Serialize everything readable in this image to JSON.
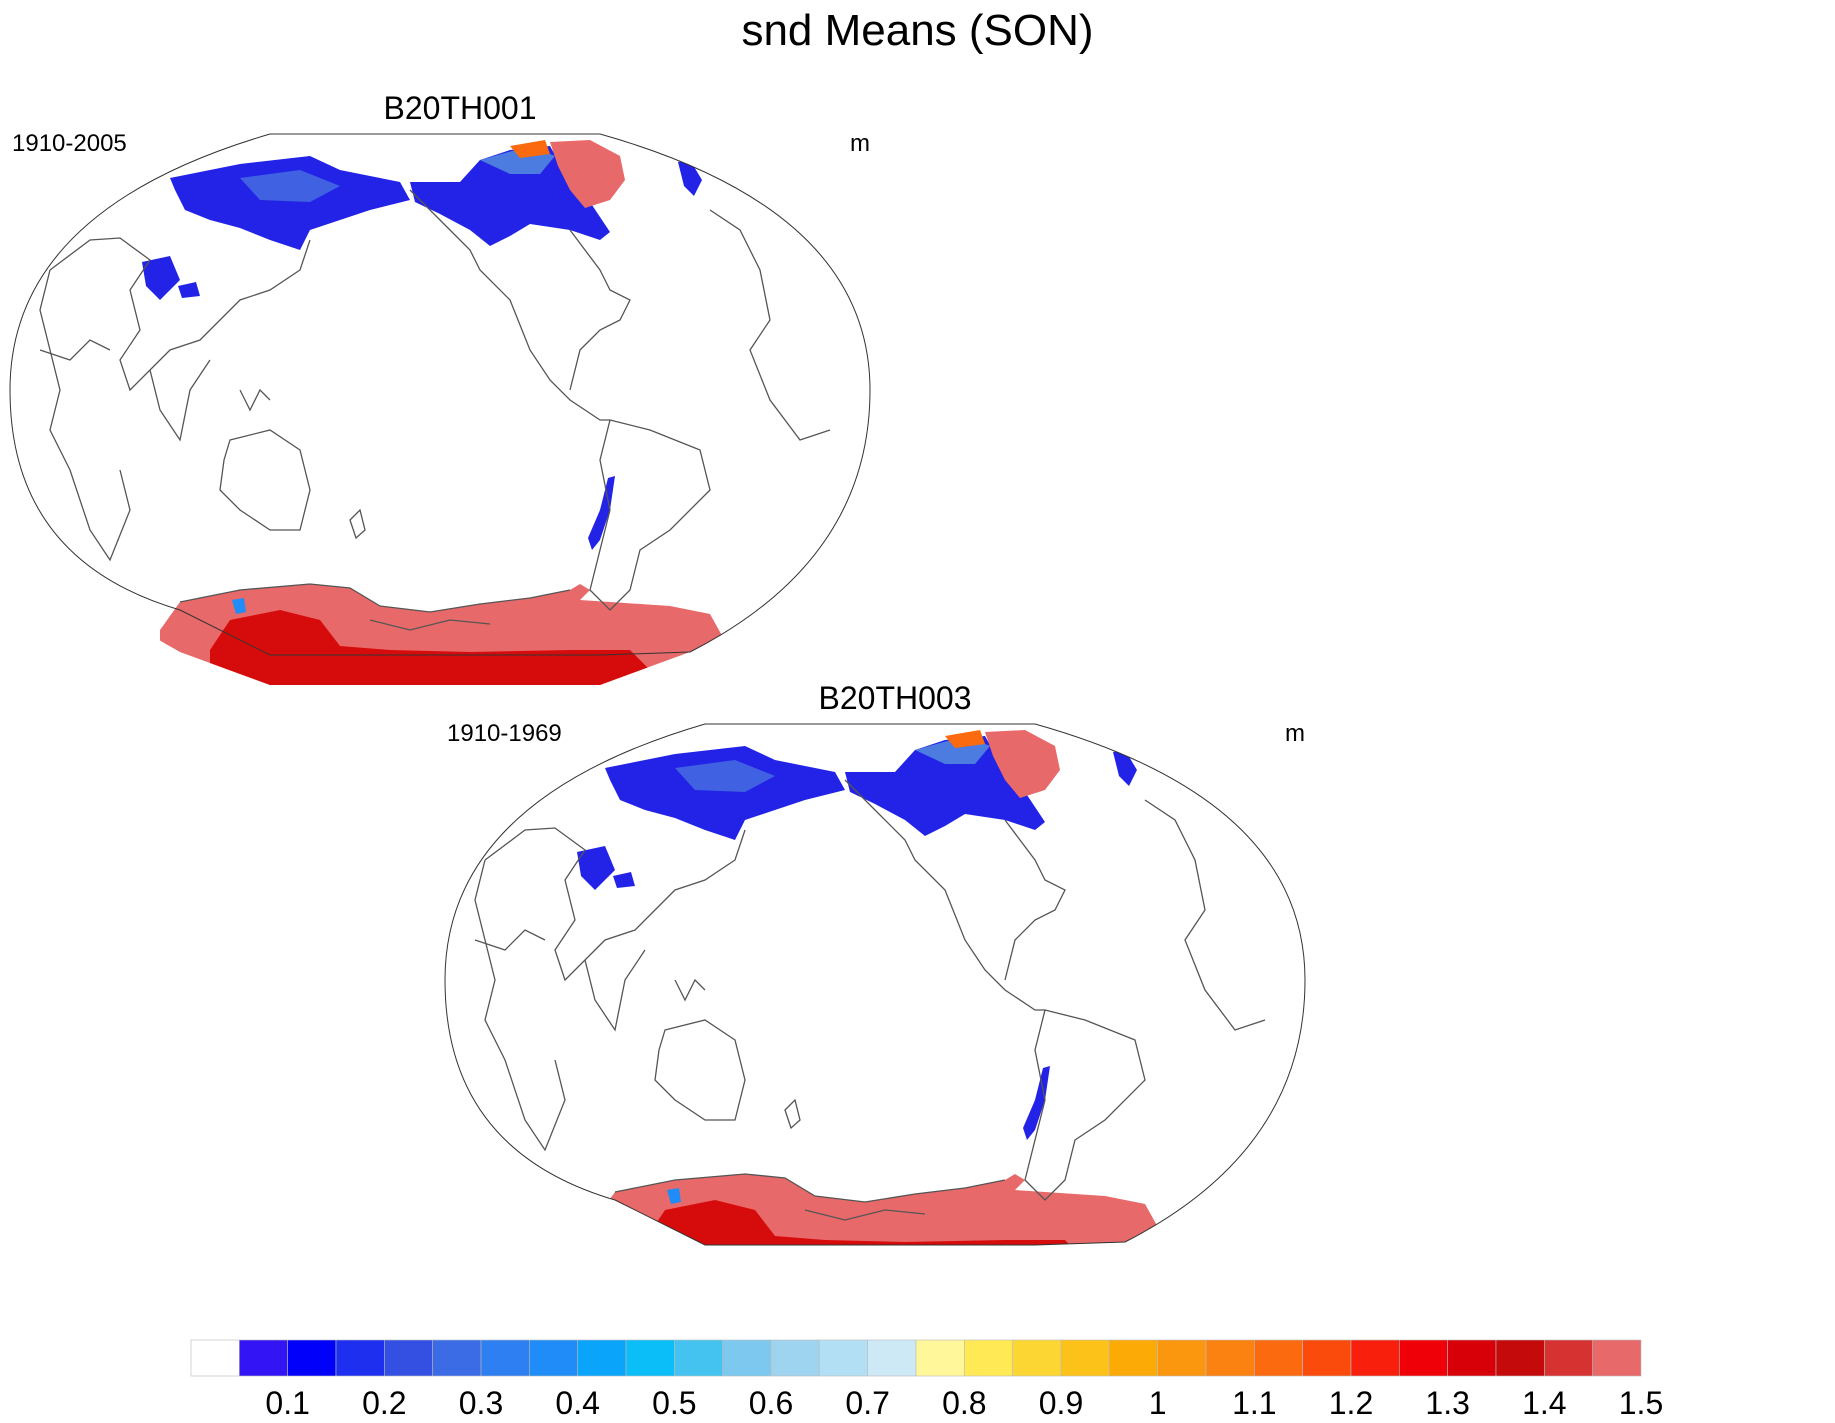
{
  "title": "snd Means (SON)",
  "panels": [
    {
      "title": "B20TH001",
      "period": "1910-2005",
      "units": "m"
    },
    {
      "title": "B20TH003",
      "period": "1910-1969",
      "units": "m"
    }
  ],
  "colorbar": {
    "tick_labels": [
      "0.1",
      "0.2",
      "0.3",
      "0.4",
      "0.5",
      "0.6",
      "0.7",
      "0.8",
      "0.9",
      "1",
      "1.1",
      "1.2",
      "1.3",
      "1.4",
      "1.5"
    ],
    "colors": [
      "#ffffff",
      "#3314f4",
      "#0000fb",
      "#1f2ff0",
      "#3350e2",
      "#3c6be6",
      "#2e7ff2",
      "#1f8cf7",
      "#0aa5fb",
      "#0cbef8",
      "#44c2f0",
      "#7cc8ee",
      "#9fd4f0",
      "#b3dff4",
      "#cde9f6",
      "#fff799",
      "#ffe955",
      "#fcd733",
      "#fcc21a",
      "#fcab06",
      "#fb960f",
      "#fb8210",
      "#fb6a0e",
      "#fa4a0c",
      "#f81f0c",
      "#ef0008",
      "#d80008",
      "#c40a0a",
      "#d73232",
      "#e8696a"
    ]
  },
  "legend_colors": {
    "snow_low": "#2323e8",
    "snow_mid": "#4c7ce0",
    "snow_high": "#e8696a",
    "snow_max": "#d60c0c",
    "coast": "#555555"
  }
}
